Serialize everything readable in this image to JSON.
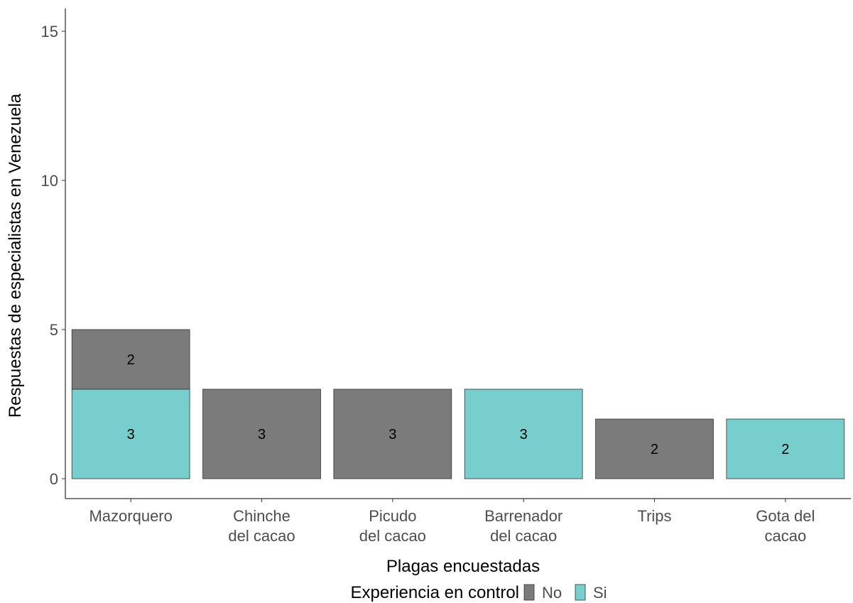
{
  "chart_data": {
    "type": "bar",
    "stacked": true,
    "categories": [
      [
        "Mazorquero"
      ],
      [
        "Chinche",
        "del cacao"
      ],
      [
        "Picudo",
        "del cacao"
      ],
      [
        "Barrenador",
        "del cacao"
      ],
      [
        "Trips"
      ],
      [
        "Gota del",
        "cacao"
      ]
    ],
    "series": [
      {
        "name": "Si",
        "color": "#78cdcd",
        "values": [
          3,
          0,
          0,
          3,
          0,
          2
        ]
      },
      {
        "name": "No",
        "color": "#7b7b7b",
        "values": [
          2,
          3,
          3,
          0,
          2,
          0
        ]
      }
    ],
    "xlabel": "Plagas encuestadas",
    "ylabel": "Respuestas de especialistas en Venezuela",
    "ylim": [
      0,
      15
    ],
    "yticks": [
      0,
      5,
      10,
      15
    ],
    "grid": false,
    "legend": {
      "title": "Experiencia en control",
      "position": "bottom",
      "items": [
        {
          "name": "No",
          "color": "#7b7b7b"
        },
        {
          "name": "Si",
          "color": "#78cdcd"
        }
      ]
    }
  }
}
